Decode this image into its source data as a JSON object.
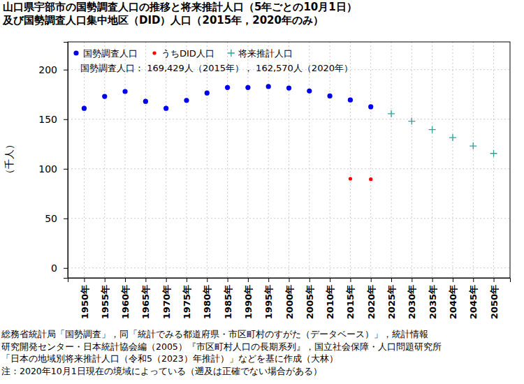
{
  "chart_data": {
    "type": "scatter",
    "title": "山口県宇部市の国勢調査人口の推移と将来推計人口（5年ごとの10月1日）",
    "subtitle": "及び国勢調査人口集中地区（DID）人口（2015年，2020年のみ）",
    "y_label": "（千人）",
    "annotations": [
      "国勢調査人口： 169,429人（2015年）， 162,570人（2020年）"
    ],
    "source": [
      "総務省統計局「国勢調査」，同「統計でみる都道府県・市区町村のすがた（データベース）」，統計情報",
      "研究開発センター・日本統計協会編（2005）『市区町村人口の長期系列』，国立社会保障・人口問題研究所",
      "「日本の地域別将来推計人口（令和5（2023）年推計）」などを基に作成（大林）",
      "注：2020年10月1日現在の境域によっている（遡及は正確でない場合がある）"
    ],
    "x": [
      1950,
      1955,
      1960,
      1965,
      1970,
      1975,
      1980,
      1985,
      1990,
      1995,
      2000,
      2005,
      2010,
      2015,
      2020,
      2025,
      2030,
      2035,
      2040,
      2045,
      2050
    ],
    "xlim": [
      1946,
      2054
    ],
    "xticks": [
      {
        "value": 1950,
        "label": "1950年"
      },
      {
        "value": 1955,
        "label": "1955年"
      },
      {
        "value": 1960,
        "label": "1960年"
      },
      {
        "value": 1965,
        "label": "1965年"
      },
      {
        "value": 1970,
        "label": "1970年"
      },
      {
        "value": 1975,
        "label": "1975年"
      },
      {
        "value": 1980,
        "label": "1980年"
      },
      {
        "value": 1985,
        "label": "1985年"
      },
      {
        "value": 1990,
        "label": "1990年"
      },
      {
        "value": 1995,
        "label": "1995年"
      },
      {
        "value": 2000,
        "label": "2000年"
      },
      {
        "value": 2005,
        "label": "2005年"
      },
      {
        "value": 2010,
        "label": "2010年"
      },
      {
        "value": 2015,
        "label": "2015年"
      },
      {
        "value": 2020,
        "label": "2020年"
      },
      {
        "value": 2025,
        "label": "2025年"
      },
      {
        "value": 2030,
        "label": "2030年"
      },
      {
        "value": 2035,
        "label": "2035年"
      },
      {
        "value": 2040,
        "label": "2040年"
      },
      {
        "value": 2045,
        "label": "2045年"
      },
      {
        "value": 2050,
        "label": "2050年"
      }
    ],
    "ylim": [
      -10,
      228
    ],
    "yticks": [
      0,
      50,
      100,
      150,
      200
    ],
    "grid": true,
    "legend": "upper left",
    "series": [
      {
        "name": "国勢調査人口",
        "color": "#0000ee",
        "marker": "circle",
        "values": [
          161,
          173,
          178,
          168,
          161,
          169,
          176.5,
          182,
          182,
          183,
          181.5,
          178.5,
          173.5,
          169.429,
          162.57,
          null,
          null,
          null,
          null,
          null,
          null
        ]
      },
      {
        "name": "うちDID人口",
        "color": "#ff0000",
        "marker": "small_circle",
        "values": [
          null,
          null,
          null,
          null,
          null,
          null,
          null,
          null,
          null,
          null,
          null,
          null,
          null,
          90,
          89.5,
          null,
          null,
          null,
          null,
          null,
          null
        ]
      },
      {
        "name": "将来推計人口",
        "color": "#26a69a",
        "marker": "plus",
        "values": [
          null,
          null,
          null,
          null,
          null,
          null,
          null,
          null,
          null,
          null,
          null,
          null,
          null,
          null,
          null,
          155.5,
          148,
          139.5,
          131.5,
          123,
          115.5
        ]
      }
    ]
  }
}
